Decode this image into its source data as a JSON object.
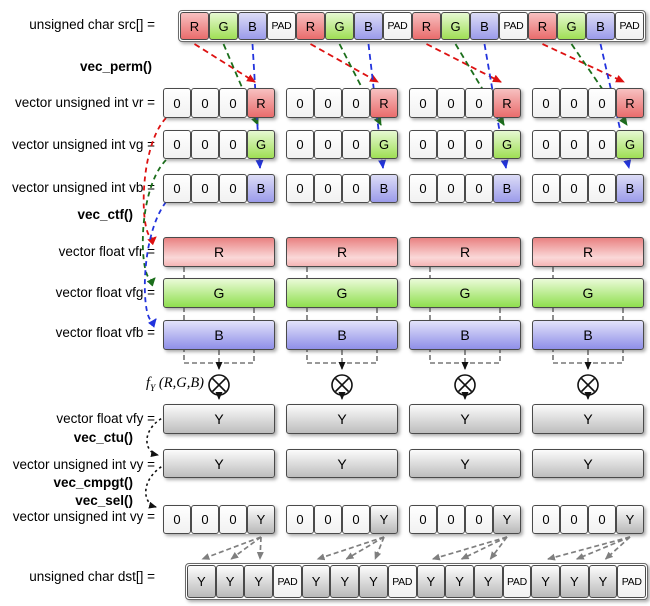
{
  "labels": {
    "src": "unsigned char src[] =",
    "vec_perm": "vec_perm()",
    "vr": "vector unsigned int vr =",
    "vg": "vector unsigned int vg =",
    "vb": "vector unsigned int vb =",
    "vec_ctf": "vec_ctf()",
    "vfr": "vector float vfr =",
    "vfg": "vector float vfg =",
    "vfb": "vector float vfb =",
    "fy_f": "f",
    "fy_sub": "Y",
    "fy_args": "(R,G,B)",
    "vfy": "vector float vfy =",
    "vec_ctu": "vec_ctu()",
    "vy": "vector unsigned int vy =",
    "vec_cmpgt": "vec_cmpgt()",
    "vec_sel": "vec_sel()",
    "vy2": "vector unsigned int vy =",
    "dst": "unsigned char dst[] ="
  },
  "src_row": {
    "cells": [
      "R",
      "G",
      "B",
      "PAD",
      "R",
      "G",
      "B",
      "PAD",
      "R",
      "G",
      "B",
      "PAD",
      "R",
      "G",
      "B",
      "PAD"
    ]
  },
  "dst_row": {
    "cells": [
      "Y",
      "Y",
      "Y",
      "PAD",
      "Y",
      "Y",
      "Y",
      "PAD",
      "Y",
      "Y",
      "Y",
      "PAD",
      "Y",
      "Y",
      "Y",
      "PAD"
    ]
  },
  "vectors": {
    "vr": {
      "group_cells": [
        "0",
        "0",
        "0",
        "R"
      ],
      "groups": 4
    },
    "vg": {
      "group_cells": [
        "0",
        "0",
        "0",
        "G"
      ],
      "groups": 4
    },
    "vb": {
      "group_cells": [
        "0",
        "0",
        "0",
        "B"
      ],
      "groups": 4
    },
    "vfr": {
      "bar_label": "R",
      "groups": 4
    },
    "vfg": {
      "bar_label": "G",
      "groups": 4
    },
    "vfb": {
      "bar_label": "B",
      "groups": 4
    },
    "vfy": {
      "bar_label": "Y",
      "groups": 4
    },
    "vy": {
      "bar_label": "Y",
      "groups": 4
    },
    "vy_sel": {
      "group_cells": [
        "0",
        "0",
        "0",
        "Y"
      ],
      "groups": 4
    }
  },
  "icons": {
    "multiply": "circled-times-operator"
  },
  "colors": {
    "arrow_red": "#dd1111",
    "arrow_green": "#1b6e1b",
    "arrow_blue": "#2233dd",
    "arrow_gray": "#7f7f7f",
    "arrow_black": "#111111",
    "funnel_dash": "#333333",
    "cell_border": "#4a4a4a",
    "red_cell": "#e96c6c",
    "green_cell": "#9fdf55",
    "blue_cell": "#9b9bea",
    "gray_cell": "#b9b9b9"
  }
}
